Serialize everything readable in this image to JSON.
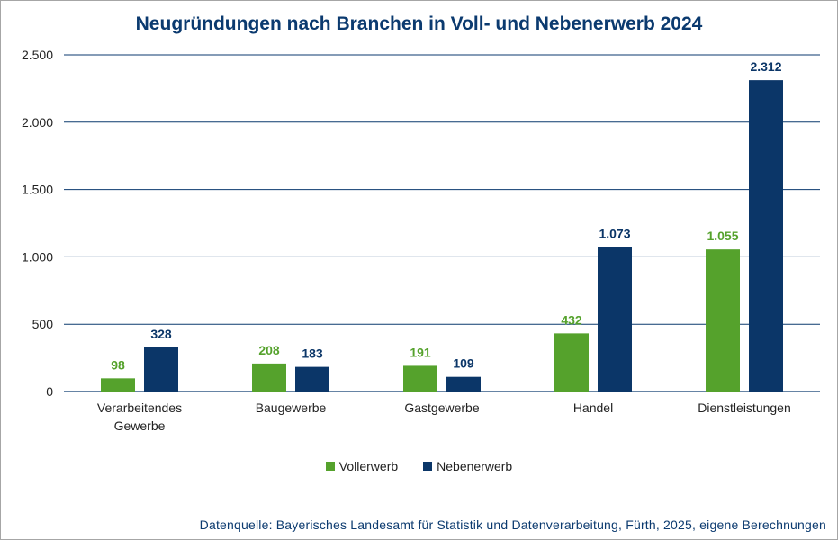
{
  "colors": {
    "title": "#0b3a6f",
    "vollerwerb": "#55a22c",
    "nebenerwerb": "#0b3668",
    "grid": "#0b3a6f",
    "source": "#0b3a6f"
  },
  "chart_data": {
    "type": "bar",
    "title": "Neugründungen nach Branchen in Voll- und Nebenerwerb 2024",
    "categories": [
      [
        "Verarbeitendes",
        "Gewerbe"
      ],
      [
        "Baugewerbe"
      ],
      [
        "Gastgewerbe"
      ],
      [
        "Handel"
      ],
      [
        "Dienstleistungen"
      ]
    ],
    "series": [
      {
        "name": "Vollerwerb",
        "values": [
          98,
          208,
          191,
          432,
          1055
        ],
        "labels": [
          "98",
          "208",
          "191",
          "432",
          "1.055"
        ]
      },
      {
        "name": "Nebenerwerb",
        "values": [
          328,
          183,
          109,
          1073,
          2312
        ],
        "labels": [
          "328",
          "183",
          "109",
          "1.073",
          "2.312"
        ]
      }
    ],
    "ylim": [
      0,
      2500
    ],
    "yticks": [
      0,
      500,
      1000,
      1500,
      2000,
      2500
    ],
    "ytick_labels": [
      "0",
      "500",
      "1.000",
      "1.500",
      "2.000",
      "2.500"
    ],
    "grid": true,
    "legend_position": "bottom"
  },
  "source": "Datenquelle: Bayerisches Landesamt für Statistik und Datenverarbeitung, Fürth, 2025, eigene Berechnungen"
}
